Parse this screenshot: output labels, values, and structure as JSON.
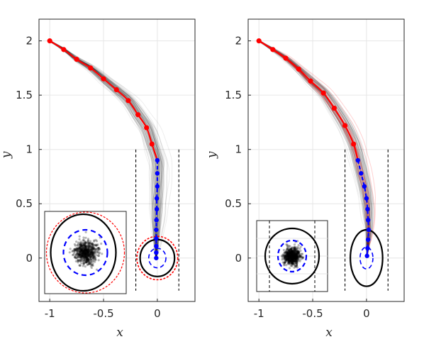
{
  "chart_data": [
    {
      "type": "line",
      "panel": "left",
      "xlabel": "x",
      "ylabel": "y",
      "xlim": [
        -1.1,
        0.35
      ],
      "ylim": [
        -0.4,
        2.2
      ],
      "xticks": [
        "-1",
        "-0.5",
        "0"
      ],
      "xtick_values": [
        -1,
        -0.5,
        0
      ],
      "yticks": [
        "0",
        "0.5",
        "1",
        "1.5",
        "2"
      ],
      "ytick_values": [
        0,
        0.5,
        1,
        1.5,
        2
      ],
      "grid": true,
      "series": [
        {
          "style": "red line with dot markers",
          "x": [
            -1.0,
            -0.87,
            -0.75,
            -0.62,
            -0.5,
            -0.38,
            -0.27,
            -0.18,
            -0.1,
            -0.05
          ],
          "y": [
            2.0,
            1.92,
            1.83,
            1.75,
            1.65,
            1.55,
            1.45,
            1.32,
            1.2,
            1.05
          ]
        },
        {
          "style": "blue dashed with dot markers",
          "x": [
            0.0,
            0.0,
            0.0,
            -0.005,
            -0.005,
            -0.008,
            -0.01,
            -0.01,
            -0.01,
            -0.01,
            -0.01
          ],
          "y": [
            0.9,
            0.78,
            0.66,
            0.55,
            0.45,
            0.35,
            0.26,
            0.18,
            0.11,
            0.05,
            0.0
          ]
        }
      ],
      "ellipses": [
        {
          "style": "solid black",
          "cx": 0.0,
          "cy": 0.0,
          "rx": 0.16,
          "ry": 0.17
        },
        {
          "style": "dashed red",
          "cx": 0.0,
          "cy": 0.0,
          "rx": 0.19,
          "ry": 0.2
        },
        {
          "style": "dashed blue",
          "cx": 0.0,
          "cy": 0.0,
          "rx": 0.08,
          "ry": 0.09
        }
      ],
      "bounds_x": [
        -0.2,
        0.2
      ]
    },
    {
      "type": "line",
      "panel": "right",
      "xlabel": "x",
      "ylabel": "y",
      "xlim": [
        -1.1,
        0.35
      ],
      "ylim": [
        -0.4,
        2.2
      ],
      "xticks": [
        "-1",
        "-0.5",
        "0"
      ],
      "xtick_values": [
        -1,
        -0.5,
        0
      ],
      "yticks": [
        "0",
        "0.5",
        "1",
        "1.5",
        "2"
      ],
      "ytick_values": [
        0,
        0.5,
        1,
        1.5,
        2
      ],
      "grid": true,
      "series": [
        {
          "style": "red line with dot markers",
          "x": [
            -1.0,
            -0.87,
            -0.75,
            -0.63,
            -0.52,
            -0.4,
            -0.3,
            -0.2,
            -0.12
          ],
          "y": [
            2.0,
            1.92,
            1.84,
            1.74,
            1.63,
            1.52,
            1.38,
            1.22,
            1.05
          ]
        },
        {
          "style": "blue dashed with dot markers",
          "x": [
            -0.08,
            -0.05,
            -0.02,
            0.0,
            0.01,
            0.015,
            0.02,
            0.015,
            0.01,
            0.005
          ],
          "y": [
            0.9,
            0.78,
            0.66,
            0.55,
            0.45,
            0.35,
            0.26,
            0.17,
            0.09,
            0.02
          ]
        }
      ],
      "ellipses": [
        {
          "style": "solid black",
          "cx": 0.0,
          "cy": 0.0,
          "rx": 0.15,
          "ry": 0.26
        },
        {
          "style": "dashed blue",
          "cx": 0.0,
          "cy": 0.0,
          "rx": 0.06,
          "ry": 0.1
        }
      ],
      "bounds_x": [
        -0.2,
        0.2
      ]
    }
  ],
  "colors": {
    "trajectory_mean": "#ff0000",
    "terminal_phase": "#0000ff",
    "samples": "#000000",
    "bounds": "#000000",
    "grid": "#e6e6e6"
  }
}
